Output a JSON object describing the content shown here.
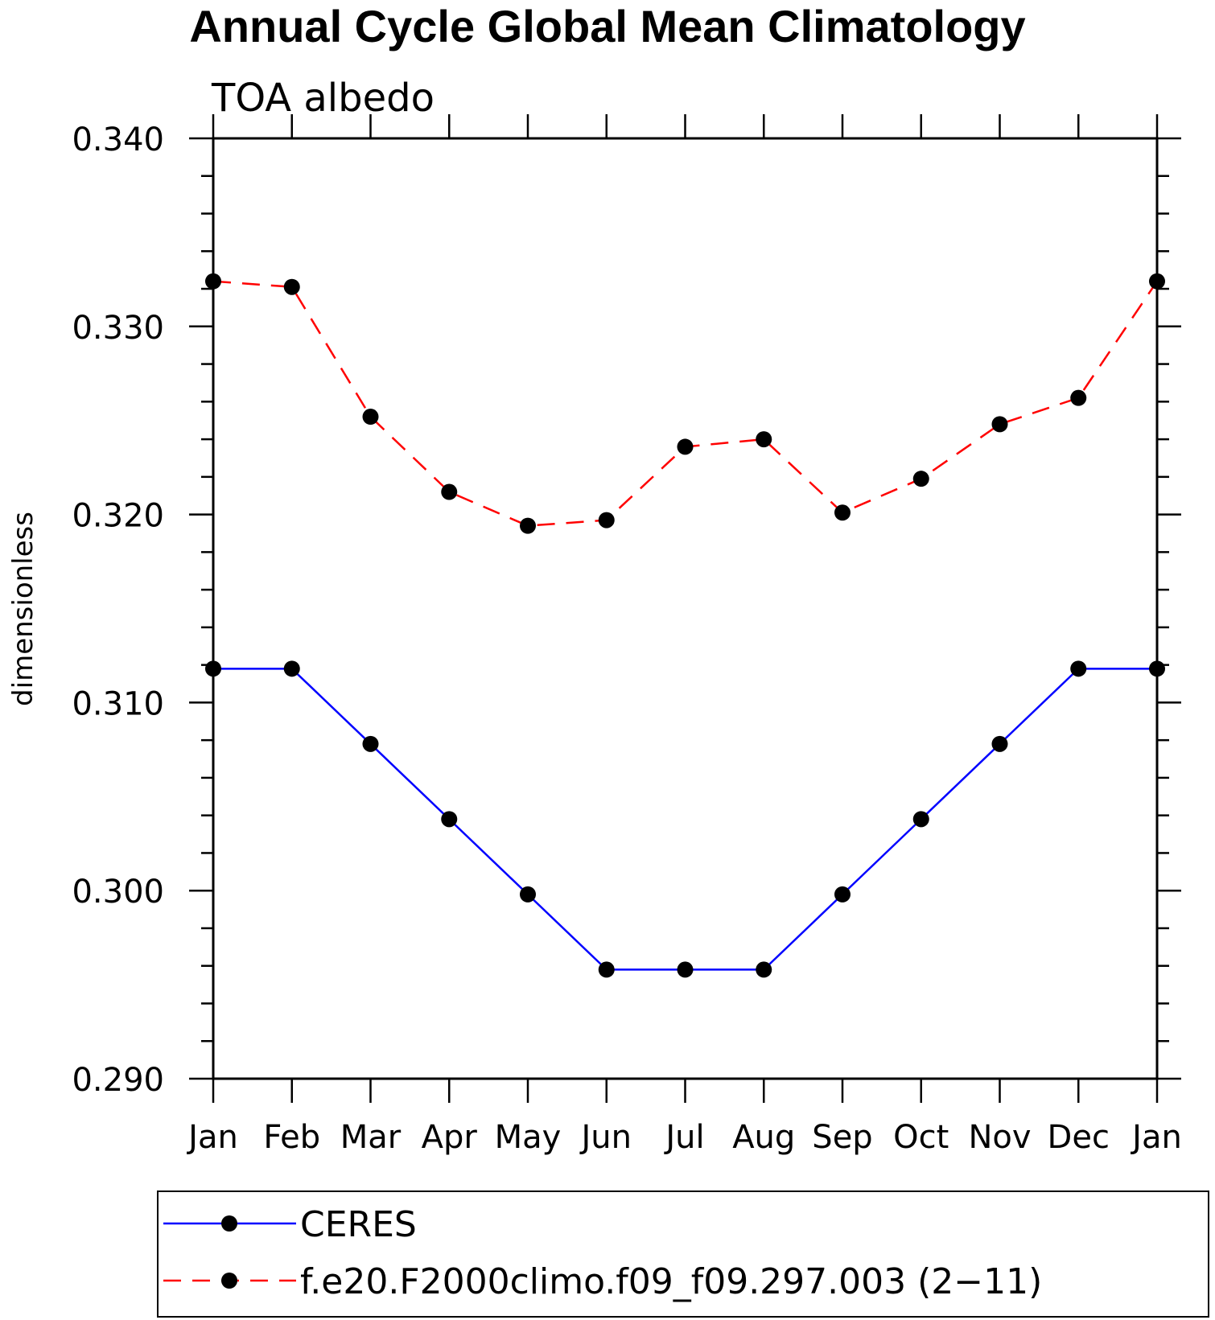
{
  "chart_data": {
    "type": "line",
    "title": "Annual Cycle Global Mean Climatology",
    "subtitle": "TOA albedo",
    "xlabel": "",
    "ylabel": "dimensionless",
    "categories": [
      "Jan",
      "Feb",
      "Mar",
      "Apr",
      "May",
      "Jun",
      "Jul",
      "Aug",
      "Sep",
      "Oct",
      "Nov",
      "Dec",
      "Jan"
    ],
    "ylim": [
      0.29,
      0.34
    ],
    "yticks": [
      "0.290",
      "0.300",
      "0.310",
      "0.320",
      "0.330",
      "0.340"
    ],
    "grid": false,
    "legend_position": "bottom",
    "series": [
      {
        "name": "CERES",
        "color": "#0000ff",
        "dash": "solid",
        "marker": "filled-circle",
        "values": [
          0.3118,
          0.3118,
          0.3078,
          0.3038,
          0.2998,
          0.2958,
          0.2958,
          0.2958,
          0.2998,
          0.3038,
          0.3078,
          0.3118,
          0.3118
        ]
      },
      {
        "name": "f.e20.F2000climo.f09_f09.297.003 (2−11)",
        "color": "#ff0000",
        "dash": "dashed",
        "marker": "filled-circle",
        "values": [
          0.3324,
          0.3321,
          0.3252,
          0.3212,
          0.3194,
          0.3197,
          0.3236,
          0.324,
          0.3201,
          0.3219,
          0.3248,
          0.3262,
          0.3324
        ]
      }
    ]
  }
}
